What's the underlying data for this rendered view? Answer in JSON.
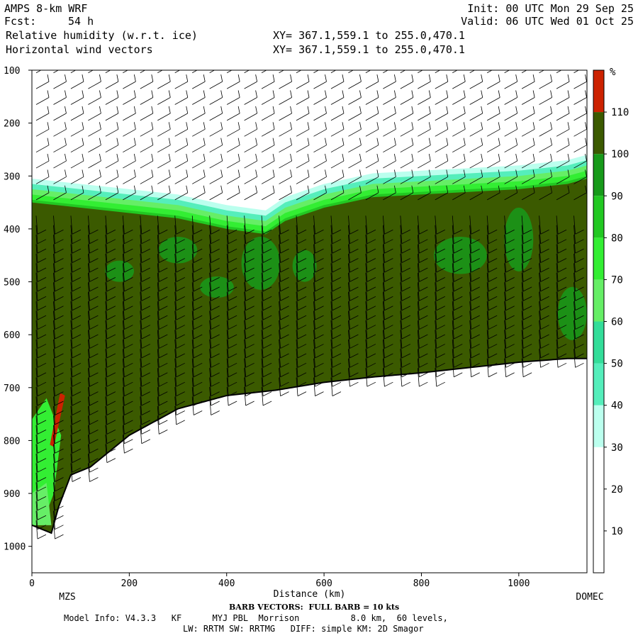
{
  "header": {
    "model": "AMPS 8-km WRF",
    "init": "Init: 00 UTC Mon 29 Sep 25",
    "fcst_label": "Fcst:",
    "fcst_value": "54 h",
    "valid": "Valid: 06 UTC Wed 01 Oct 25",
    "field1": "Relative humidity (w.r.t. ice)",
    "field2": "Horizontal wind vectors",
    "xy1": "XY= 367.1,559.1 to 255.0,470.1",
    "xy2": "XY= 367.1,559.1 to 255.0,470.1"
  },
  "footer": {
    "barb_note": "BARB VECTORS:  FULL BARB = 10 kts",
    "model_info": "Model Info: V4.3.3   KF      MYJ PBL  Morrison          8.0 km,  60 levels,",
    "physics": "LW: RRTM SW: RRTMG   DIFF: simple KM: 2D Smagor"
  },
  "colors": {
    "background": "#ffffff",
    "dark_olive": "#3b5a00",
    "green_90": "#179a1a",
    "green_80": "#22c822",
    "green_70": "#33ee33",
    "green_60": "#66ee66",
    "cyan_50": "#33dd99",
    "cyan_40": "#55eebb",
    "cyan_30": "#bbffee",
    "red": "#cc2200",
    "ground": "#ffffff"
  },
  "chart_data": {
    "type": "heatmap",
    "title": "Relative humidity (w.r.t. ice)",
    "xlabel": "Distance (km)",
    "ylabel": "",
    "xlim": [
      0,
      1140
    ],
    "ylim": [
      1050,
      100
    ],
    "x_ticks": [
      0,
      200,
      400,
      600,
      800,
      1000
    ],
    "y_ticks": [
      100,
      200,
      300,
      400,
      500,
      600,
      700,
      800,
      900,
      1000
    ],
    "endpoint_labels": [
      "MZS",
      "DOMEC"
    ],
    "colorbar": {
      "unit": "%",
      "levels": [
        10,
        20,
        30,
        40,
        50,
        60,
        70,
        80,
        90,
        100,
        110
      ],
      "colors": [
        "#ffffff",
        "#ffffff",
        "#ffffff",
        "#bbffee",
        "#55eebb",
        "#33dd99",
        "#66ee66",
        "#33ee33",
        "#22c822",
        "#179a1a",
        "#3b5a00",
        "#cc2200"
      ]
    },
    "terrain_pressure": {
      "x": [
        0,
        40,
        55,
        80,
        120,
        200,
        300,
        400,
        500,
        600,
        700,
        800,
        900,
        1000,
        1100,
        1140
      ],
      "p": [
        960,
        975,
        925,
        865,
        850,
        790,
        740,
        715,
        705,
        690,
        680,
        672,
        662,
        652,
        645,
        645
      ]
    },
    "moist_top_pressure": {
      "x": [
        0,
        100,
        200,
        300,
        400,
        480,
        520,
        600,
        700,
        800,
        900,
        1000,
        1100,
        1140
      ],
      "p": [
        350,
        360,
        370,
        380,
        400,
        410,
        385,
        360,
        340,
        335,
        330,
        325,
        315,
        305
      ]
    }
  }
}
